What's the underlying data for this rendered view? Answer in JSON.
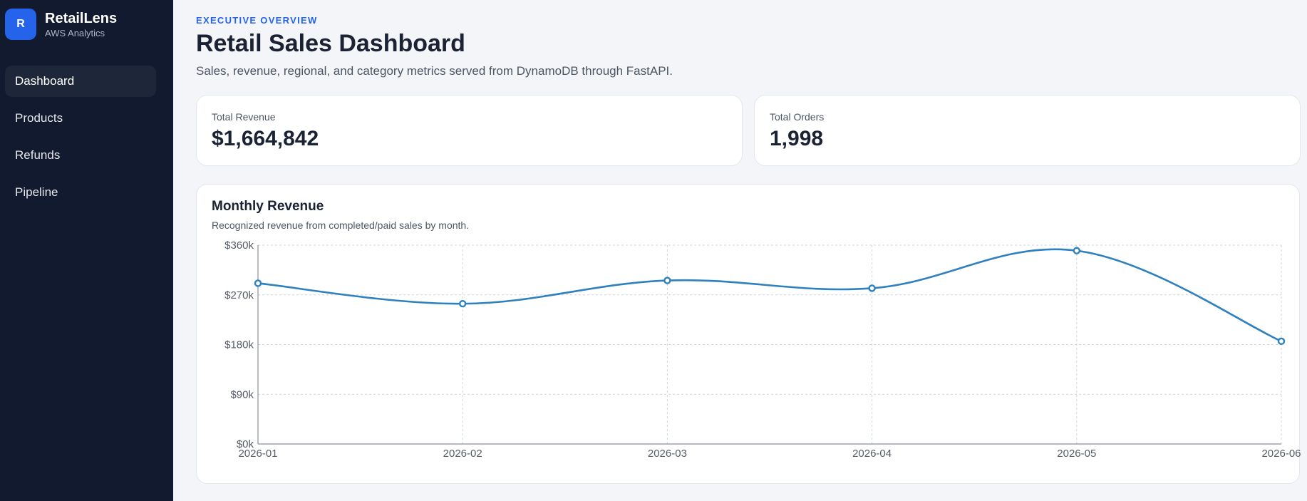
{
  "sidebar": {
    "logo_letter": "R",
    "brand_name": "RetailLens",
    "brand_sub": "AWS Analytics",
    "items": [
      {
        "label": "Dashboard",
        "active": true
      },
      {
        "label": "Products",
        "active": false
      },
      {
        "label": "Refunds",
        "active": false
      },
      {
        "label": "Pipeline",
        "active": false
      }
    ]
  },
  "header": {
    "eyebrow": "EXECUTIVE OVERVIEW",
    "title": "Retail Sales Dashboard",
    "subtitle": "Sales, revenue, regional, and category metrics served from DynamoDB through FastAPI."
  },
  "kpis": [
    {
      "label": "Total Revenue",
      "value": "$1,664,842"
    },
    {
      "label": "Total Orders",
      "value": "1,998"
    }
  ],
  "chart": {
    "title": "Monthly Revenue",
    "subtitle": "Recognized revenue from completed/paid sales by month."
  },
  "colors": {
    "accent": "#2563eb",
    "line": "#2f80be",
    "sidebar_bg": "#111a2e"
  },
  "chart_data": {
    "type": "line",
    "x": [
      "2026-01",
      "2026-02",
      "2026-03",
      "2026-04",
      "2026-05",
      "2026-06"
    ],
    "series": [
      {
        "values": [
          291000,
          254000,
          296000,
          282000,
          350000,
          186000
        ]
      }
    ],
    "y_ticks": [
      "$0k",
      "$90k",
      "$180k",
      "$270k",
      "$360k"
    ],
    "ylim": [
      0,
      360000
    ],
    "grid": true,
    "smooth": true
  }
}
